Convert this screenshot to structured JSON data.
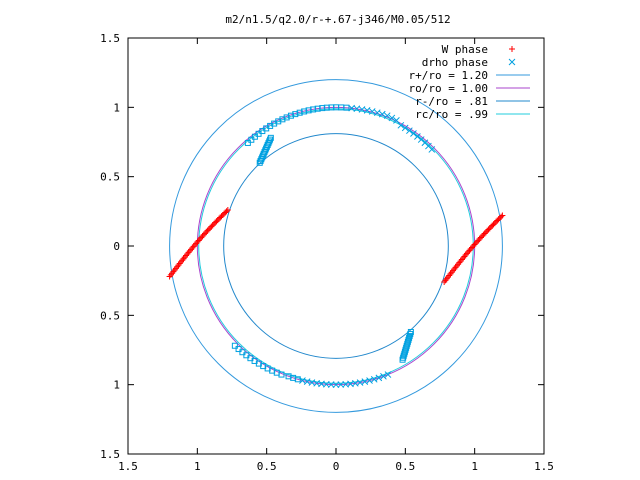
{
  "chart_data": {
    "type": "scatter",
    "title": "m2/n1.5/q2.0/r-+.67-j346/M0.05/512",
    "xlim": [
      -1.5,
      1.5
    ],
    "ylim": [
      -1.5,
      1.5
    ],
    "x_ticks": [
      {
        "value": -1.5,
        "label": "1.5"
      },
      {
        "value": -1.0,
        "label": "1"
      },
      {
        "value": -0.5,
        "label": "0.5"
      },
      {
        "value": 0.0,
        "label": "0"
      },
      {
        "value": 0.5,
        "label": "0.5"
      },
      {
        "value": 1.0,
        "label": "1"
      },
      {
        "value": 1.5,
        "label": "1.5"
      }
    ],
    "y_ticks": [
      {
        "value": 1.5,
        "label": "1.5"
      },
      {
        "value": 1.0,
        "label": "1"
      },
      {
        "value": 0.5,
        "label": "0.5"
      },
      {
        "value": 0.0,
        "label": "0"
      },
      {
        "value": -0.5,
        "label": "0.5"
      },
      {
        "value": -1.0,
        "label": "1"
      },
      {
        "value": -1.5,
        "label": "1.5"
      }
    ],
    "grid": false,
    "legend_position": "top-right",
    "series": [
      {
        "name": "W phase",
        "marker": "plus",
        "color": "#ff0000",
        "segments": [
          {
            "from": [
              -1.2,
              -0.22
            ],
            "to": [
              -0.78,
              0.26
            ]
          },
          {
            "from": [
              0.78,
              -0.26
            ],
            "to": [
              1.2,
              0.22
            ]
          }
        ]
      },
      {
        "name": "drho phase",
        "marker": "cross",
        "color": "#00a0e0",
        "arcs": [
          {
            "r": 1.0,
            "from_deg": 135,
            "to_deg": 137,
            "note": ""
          },
          {
            "r": 1.0,
            "from_deg": 70,
            "to_deg": 135
          },
          {
            "r": 1.0,
            "from_deg": 250,
            "to_deg": 315
          }
        ]
      },
      {
        "name": "r+/ro = 1.20",
        "kind": "circle",
        "r": 1.2,
        "color": "#3399dd"
      },
      {
        "name": "ro/ro = 1.00",
        "kind": "circle",
        "r": 1.0,
        "color": "#aa44cc"
      },
      {
        "name": "r-/ro = .81",
        "kind": "circle",
        "r": 0.81,
        "color": "#2288cc"
      },
      {
        "name": "rc/ro = .99",
        "kind": "circle",
        "r": 0.99,
        "color": "#22ccdd"
      }
    ]
  }
}
